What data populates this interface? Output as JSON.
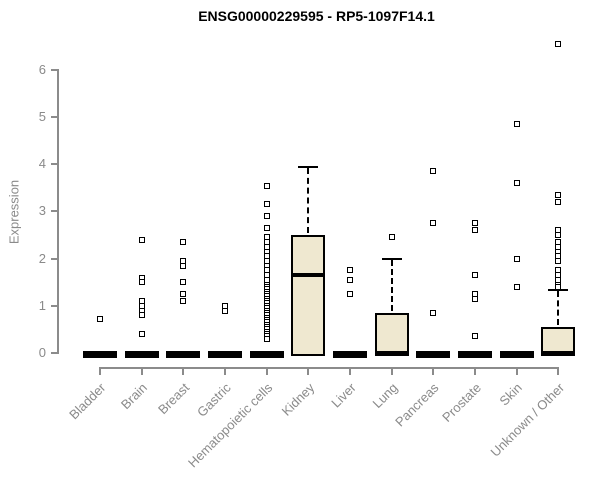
{
  "chart_data": {
    "type": "box",
    "title": "ENSG00000229595 - RP5-1097F14.1",
    "ylabel": "Expression",
    "xlabel": "",
    "ylim": [
      0,
      6.6
    ],
    "yticks": [
      0,
      1,
      2,
      3,
      4,
      5,
      6
    ],
    "grid": false,
    "legend": "none",
    "categories": [
      "Bladder",
      "Brain",
      "Breast",
      "Gastric",
      "Hematopoietic cells",
      "Kidney",
      "Liver",
      "Lung",
      "Pancreas",
      "Prostate",
      "Skin",
      "Unknown / Other"
    ],
    "boxes": [
      {
        "category": "Bladder",
        "style": "flat_at_zero",
        "q1": 0,
        "median": 0,
        "q3": 0,
        "outliers": [
          0.72
        ]
      },
      {
        "category": "Brain",
        "style": "flat_at_zero",
        "q1": 0,
        "median": 0,
        "q3": 0,
        "outliers": [
          2.4,
          1.6,
          1.5,
          1.1,
          1.0,
          0.9,
          0.8,
          0.4
        ]
      },
      {
        "category": "Breast",
        "style": "flat_at_zero",
        "q1": 0,
        "median": 0,
        "q3": 0,
        "outliers": [
          2.35,
          1.95,
          1.85,
          1.5,
          1.25,
          1.1
        ]
      },
      {
        "category": "Gastric",
        "style": "flat_at_zero",
        "q1": 0,
        "median": 0,
        "q3": 0,
        "outliers": [
          1.0,
          0.9
        ]
      },
      {
        "category": "Hematopoietic cells",
        "style": "flat_at_zero",
        "q1": 0,
        "median": 0,
        "q3": 0,
        "outliers": [
          3.55,
          3.15,
          2.9,
          2.65,
          2.45,
          2.35,
          2.25,
          2.15,
          2.05,
          1.95,
          1.85,
          1.75,
          1.65,
          1.55,
          1.45,
          1.4,
          1.35,
          1.3,
          1.25,
          1.2,
          1.15,
          1.1,
          1.05,
          1.0,
          0.95,
          0.9,
          0.85,
          0.8,
          0.75,
          0.7,
          0.65,
          0.6,
          0.55,
          0.5,
          0.45,
          0.4,
          0.35,
          0.3
        ]
      },
      {
        "category": "Kidney",
        "style": "box",
        "q1": 0,
        "median": 1.65,
        "q3": 2.5,
        "whisker_high": 3.95,
        "outliers": []
      },
      {
        "category": "Liver",
        "style": "flat_at_zero",
        "q1": 0,
        "median": 0,
        "q3": 0,
        "outliers": [
          1.75,
          1.55,
          1.25
        ]
      },
      {
        "category": "Lung",
        "style": "box",
        "q1": 0,
        "median": 0,
        "q3": 0.85,
        "whisker_high": 2.0,
        "outliers": [
          2.45
        ]
      },
      {
        "category": "Pancreas",
        "style": "flat_at_zero",
        "q1": 0,
        "median": 0,
        "q3": 0,
        "outliers": [
          3.85,
          2.75,
          0.85
        ]
      },
      {
        "category": "Prostate",
        "style": "flat_at_zero",
        "q1": 0,
        "median": 0,
        "q3": 0,
        "outliers": [
          2.75,
          2.6,
          1.65,
          1.25,
          1.15,
          0.35
        ]
      },
      {
        "category": "Skin",
        "style": "flat_at_zero",
        "q1": 0,
        "median": 0,
        "q3": 0,
        "outliers": [
          4.85,
          3.6,
          2.0,
          1.4
        ]
      },
      {
        "category": "Unknown / Other",
        "style": "box",
        "q1": 0,
        "median": 0,
        "q3": 0.55,
        "whisker_high": 1.33,
        "outliers": [
          6.55,
          3.35,
          3.2,
          2.6,
          2.5,
          2.35,
          2.25,
          2.15,
          2.05,
          1.95,
          1.75,
          1.65,
          1.55,
          1.45,
          1.4
        ]
      }
    ],
    "colors": {
      "box_fill": "#efe8d0",
      "box_border": "#000000",
      "axis": "#8b8b8b",
      "tick_label": "#8a8a8a",
      "title": "#000000",
      "point_fill": "#ffffff",
      "point_border": "#000000"
    }
  }
}
